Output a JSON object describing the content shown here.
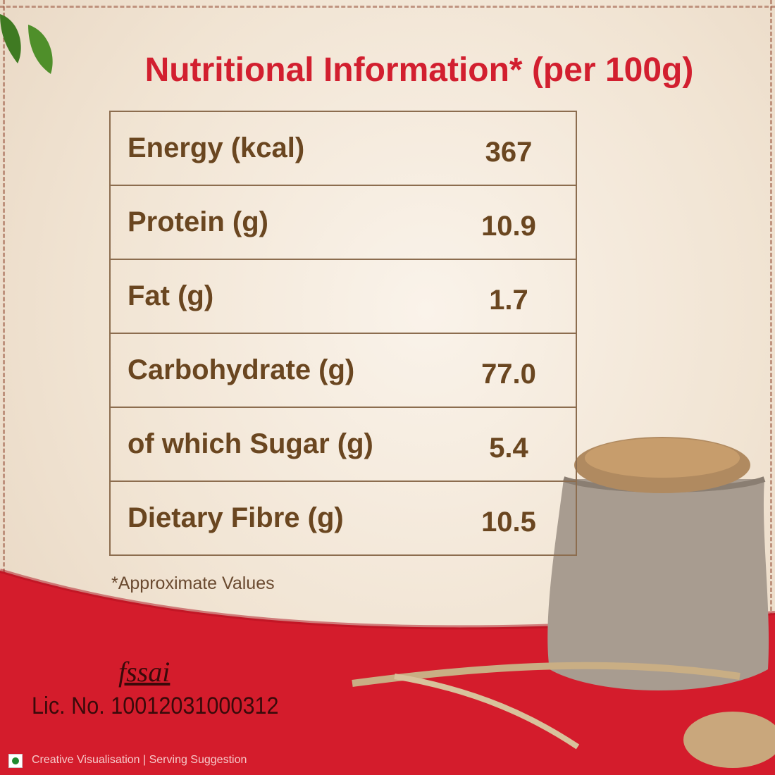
{
  "title": "Nutritional Information* (per 100g)",
  "nutrients": [
    {
      "label": "Energy (kcal)",
      "value": "367"
    },
    {
      "label": "Protein (g)",
      "value": "10.9"
    },
    {
      "label": "Fat (g)",
      "value": "1.7"
    },
    {
      "label": "Carbohydrate (g)",
      "value": "77.0"
    },
    {
      "label": "of which Sugar (g)",
      "value": "5.4"
    },
    {
      "label": "Dietary Fibre (g)",
      "value": "10.5"
    }
  ],
  "footnote": "*Approximate Values",
  "fssai_logo": "fssai",
  "license": "Lic. No. 10012031000312",
  "disclaimer": "Creative Visualisation | Serving Suggestion",
  "colors": {
    "title": "#d21f2f",
    "text": "#6a4620",
    "band": "#d41c2c",
    "veg": "#1e8a2e"
  }
}
